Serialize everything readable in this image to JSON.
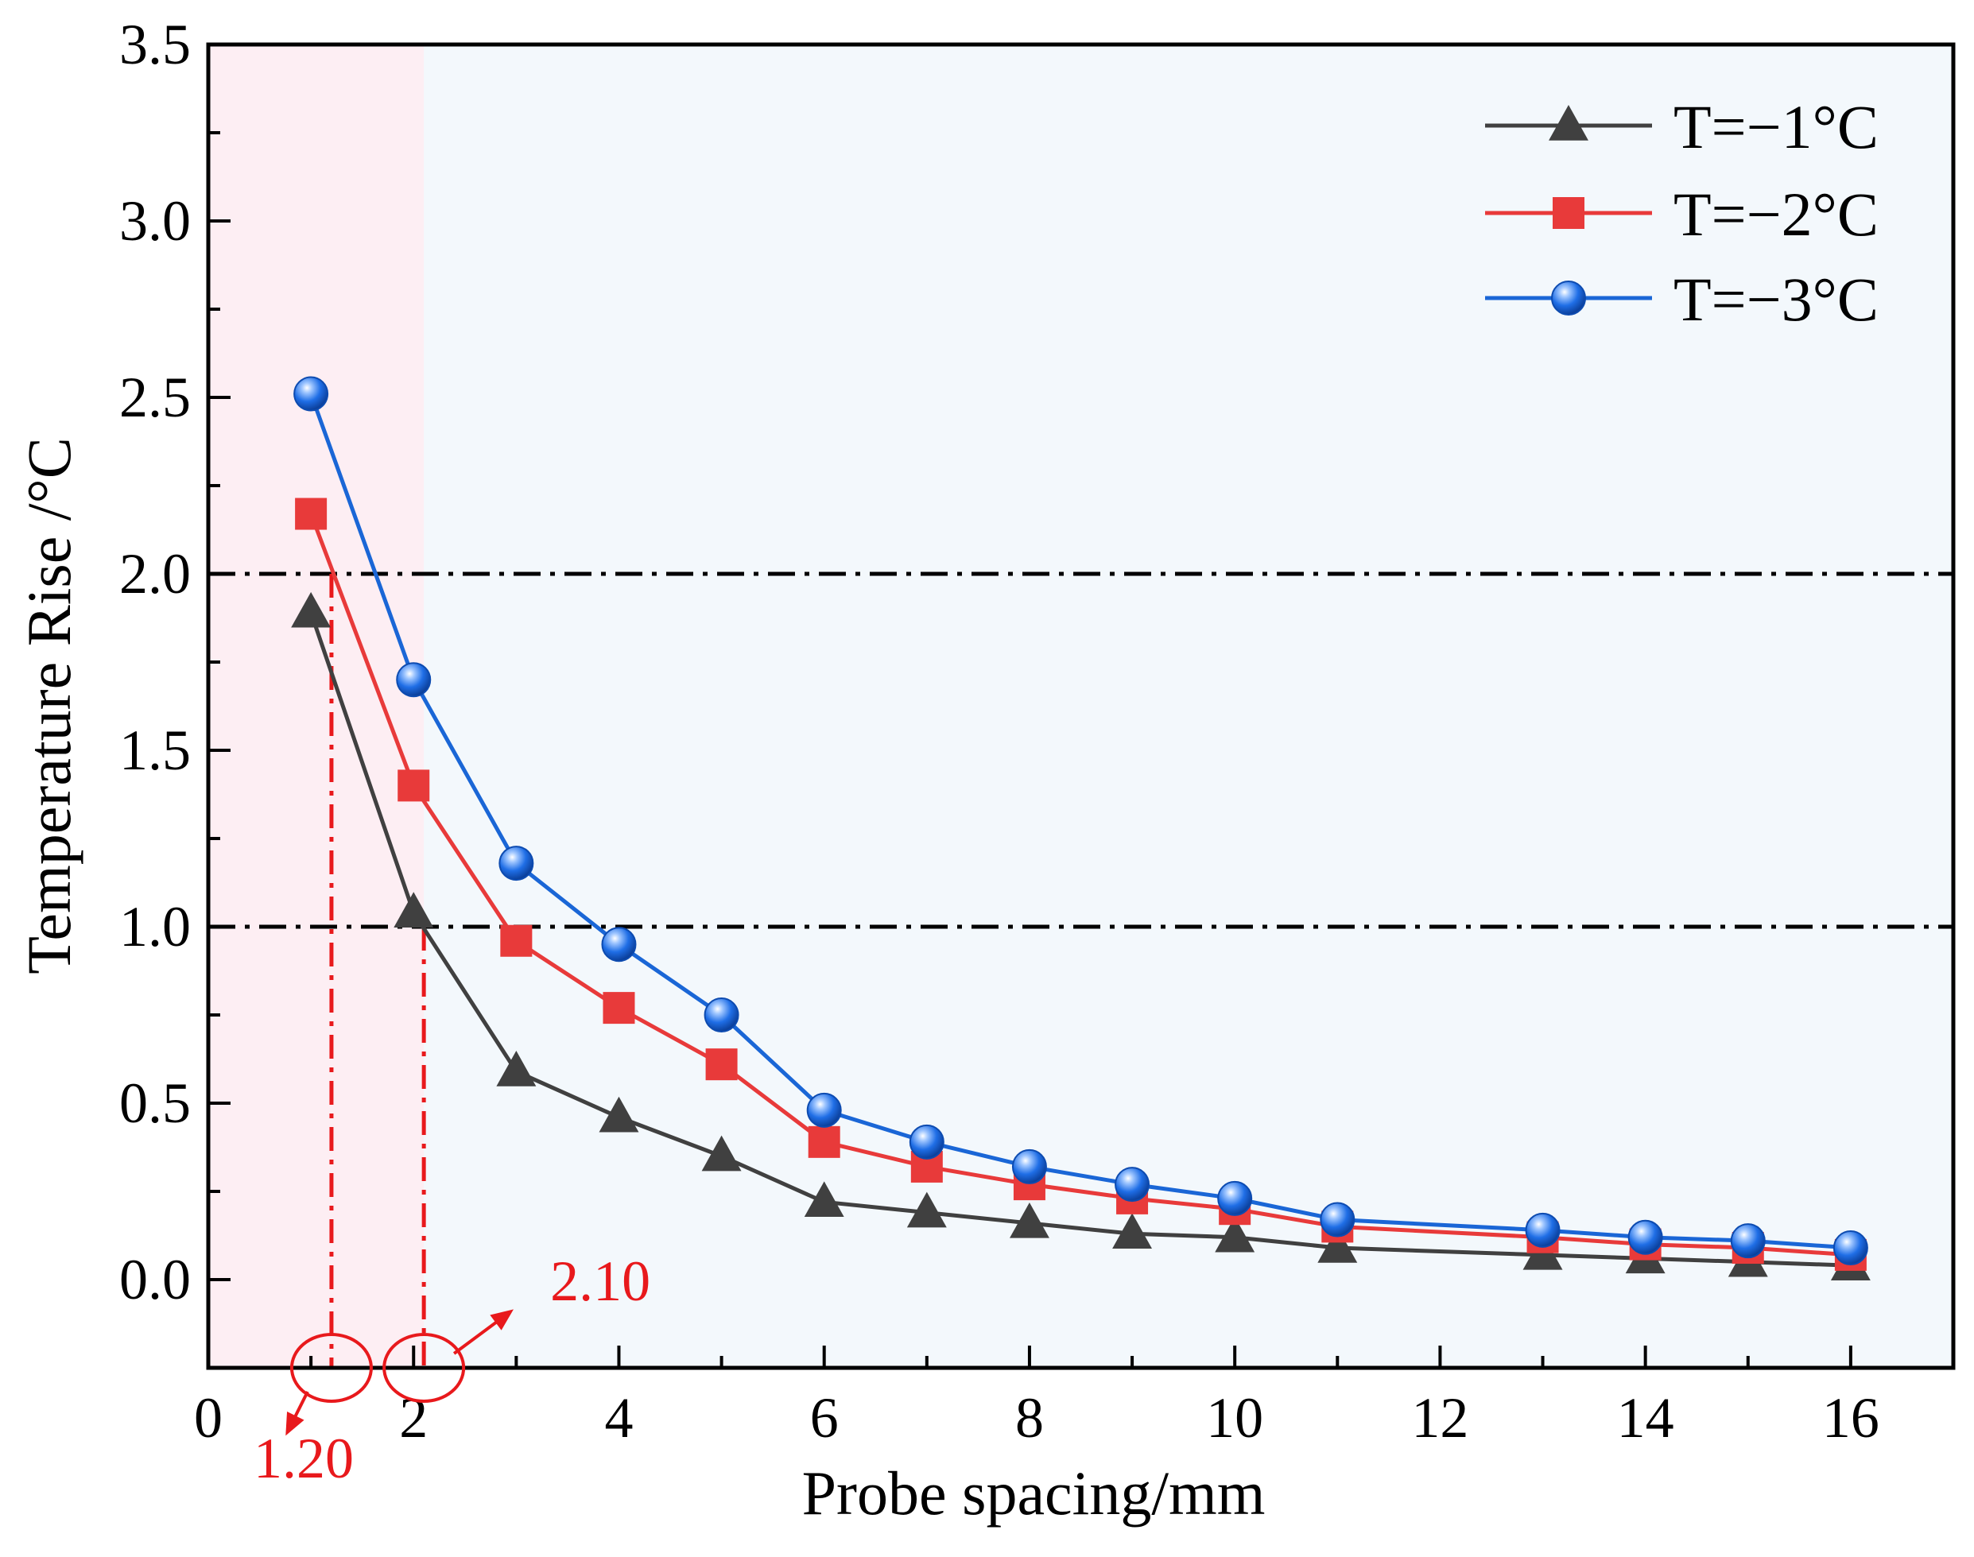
{
  "chart_data": {
    "type": "line",
    "title": "",
    "xlabel": "Probe spacing/mm",
    "ylabel": "Temperature Rise /°C",
    "xlim": [
      0,
      17
    ],
    "ylim": [
      -0.25,
      3.5
    ],
    "xticks": [
      0,
      2,
      4,
      6,
      8,
      10,
      12,
      14,
      16
    ],
    "xtick_labels": [
      "0",
      "2",
      "4",
      "6",
      "8",
      "10",
      "12",
      "14",
      "16"
    ],
    "yticks": [
      0.0,
      0.5,
      1.0,
      1.5,
      2.0,
      2.5,
      3.0,
      3.5
    ],
    "ytick_labels": [
      "0.0",
      "0.5",
      "1.0",
      "1.5",
      "2.0",
      "2.5",
      "3.0",
      "3.5"
    ],
    "grid": false,
    "legend_position": "top-right",
    "series": [
      {
        "name": "T=−1°C",
        "color": "#404040",
        "marker": "triangle",
        "x": [
          1,
          2,
          3,
          4,
          5,
          6,
          7,
          8,
          9,
          10,
          11,
          13,
          14,
          15,
          16
        ],
        "values": [
          1.89,
          1.04,
          0.59,
          0.46,
          0.35,
          0.22,
          0.19,
          0.16,
          0.13,
          0.12,
          0.09,
          0.07,
          0.06,
          0.05,
          0.04
        ]
      },
      {
        "name": "T=−2°C",
        "color": "#e83a3a",
        "marker": "square",
        "x": [
          1,
          2,
          3,
          4,
          5,
          6,
          7,
          8,
          9,
          10,
          11,
          13,
          14,
          15,
          16
        ],
        "values": [
          2.17,
          1.4,
          0.96,
          0.77,
          0.61,
          0.39,
          0.32,
          0.27,
          0.23,
          0.2,
          0.15,
          0.12,
          0.1,
          0.09,
          0.07
        ]
      },
      {
        "name": "T=−3°C",
        "color": "#1a66d6",
        "marker": "circle",
        "x": [
          1,
          2,
          3,
          4,
          5,
          6,
          7,
          8,
          9,
          10,
          11,
          13,
          14,
          15,
          16
        ],
        "values": [
          2.51,
          1.7,
          1.18,
          0.95,
          0.75,
          0.48,
          0.39,
          0.32,
          0.27,
          0.23,
          0.17,
          0.14,
          0.12,
          0.11,
          0.09
        ]
      }
    ],
    "reference_lines": [
      {
        "axis": "y",
        "value": 2.0,
        "style": "dash-dot",
        "color": "#000000"
      },
      {
        "axis": "y",
        "value": 1.0,
        "style": "dash-dot",
        "color": "#000000"
      }
    ],
    "shaded_regions": [
      {
        "x_from": 0,
        "x_to": 2.1,
        "color": "#fdeef3"
      },
      {
        "x_from": 2.1,
        "x_to": 17,
        "color": "#f3f8fc"
      }
    ],
    "annotations": [
      {
        "label": "1.20",
        "x": 1.2,
        "y_from": 2.0,
        "color": "#e8191c",
        "side": "below-left"
      },
      {
        "label": "2.10",
        "x": 2.1,
        "y_from": 1.0,
        "color": "#e8191c",
        "side": "upper-right"
      }
    ]
  }
}
